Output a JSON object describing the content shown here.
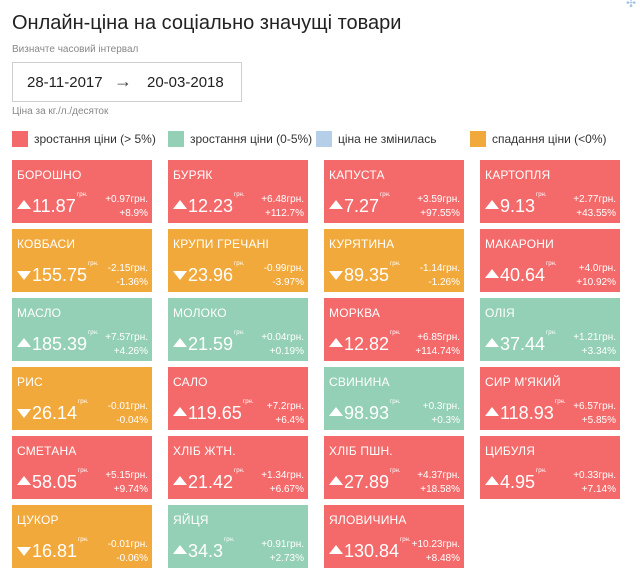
{
  "header": {
    "title": "Онлайн-ціна на соціально значущі товари",
    "date_label": "Визначте часовий інтервал",
    "date_from": "28-11-2017",
    "date_arrow": "→",
    "date_to": "20-03-2018",
    "unit_label": "Ціна за кг./л./десяток",
    "corner_icon": "✣"
  },
  "colors": {
    "red": "#f46a6a",
    "green": "#94d0b6",
    "blue": "#b6cfe8",
    "orange": "#f2a93b"
  },
  "legend": [
    {
      "label": "зростання ціни (> 5%)",
      "color": "#f46a6a"
    },
    {
      "label": "зростання ціни (0-5%)",
      "color": "#94d0b6"
    },
    {
      "label": "ціна не змінилась",
      "color": "#b6cfe8"
    },
    {
      "label": "спадання ціни (<0%)",
      "color": "#f2a93b"
    }
  ],
  "currency": "грн.",
  "products": [
    {
      "name": "БОРОШНО",
      "price": "11.87",
      "change": "+0.97грн.",
      "pct": "+8.9%",
      "dir": "up",
      "color": "red"
    },
    {
      "name": "БУРЯК",
      "price": "12.23",
      "change": "+6.48грн.",
      "pct": "+112.7%",
      "dir": "up",
      "color": "red"
    },
    {
      "name": "КАПУСТА",
      "price": "7.27",
      "change": "+3.59грн.",
      "pct": "+97.55%",
      "dir": "up",
      "color": "red"
    },
    {
      "name": "КАРТОПЛЯ",
      "price": "9.13",
      "change": "+2.77грн.",
      "pct": "+43.55%",
      "dir": "up",
      "color": "red"
    },
    {
      "name": "КОВБАСИ",
      "price": "155.75",
      "change": "-2.15грн.",
      "pct": "-1.36%",
      "dir": "down",
      "color": "orange"
    },
    {
      "name": "КРУПИ ГРЕЧАНІ",
      "price": "23.96",
      "change": "-0.99грн.",
      "pct": "-3.97%",
      "dir": "down",
      "color": "orange"
    },
    {
      "name": "КУРЯТИНА",
      "price": "89.35",
      "change": "-1.14грн.",
      "pct": "-1.26%",
      "dir": "down",
      "color": "orange"
    },
    {
      "name": "МАКАРОНИ",
      "price": "40.64",
      "change": "+4.0грн.",
      "pct": "+10.92%",
      "dir": "up",
      "color": "red"
    },
    {
      "name": "МАСЛО",
      "price": "185.39",
      "change": "+7.57грн.",
      "pct": "+4.26%",
      "dir": "up",
      "color": "green"
    },
    {
      "name": "МОЛОКО",
      "price": "21.59",
      "change": "+0.04грн.",
      "pct": "+0.19%",
      "dir": "up",
      "color": "green"
    },
    {
      "name": "МОРКВА",
      "price": "12.82",
      "change": "+6.85грн.",
      "pct": "+114.74%",
      "dir": "up",
      "color": "red"
    },
    {
      "name": "ОЛІЯ",
      "price": "37.44",
      "change": "+1.21грн.",
      "pct": "+3.34%",
      "dir": "up",
      "color": "green"
    },
    {
      "name": "РИС",
      "price": "26.14",
      "change": "-0.01грн.",
      "pct": "-0.04%",
      "dir": "down",
      "color": "orange"
    },
    {
      "name": "САЛО",
      "price": "119.65",
      "change": "+7.2грн.",
      "pct": "+6.4%",
      "dir": "up",
      "color": "red"
    },
    {
      "name": "СВИНИНА",
      "price": "98.93",
      "change": "+0.3грн.",
      "pct": "+0.3%",
      "dir": "up",
      "color": "green"
    },
    {
      "name": "СИР М'ЯКИЙ",
      "price": "118.93",
      "change": "+6.57грн.",
      "pct": "+5.85%",
      "dir": "up",
      "color": "red"
    },
    {
      "name": "СМЕТАНА",
      "price": "58.05",
      "change": "+5.15грн.",
      "pct": "+9.74%",
      "dir": "up",
      "color": "red"
    },
    {
      "name": "ХЛІБ ЖТН.",
      "price": "21.42",
      "change": "+1.34грн.",
      "pct": "+6.67%",
      "dir": "up",
      "color": "red"
    },
    {
      "name": "ХЛІБ ПШН.",
      "price": "27.89",
      "change": "+4.37грн.",
      "pct": "+18.58%",
      "dir": "up",
      "color": "red"
    },
    {
      "name": "ЦИБУЛЯ",
      "price": "4.95",
      "change": "+0.33грн.",
      "pct": "+7.14%",
      "dir": "up",
      "color": "red"
    },
    {
      "name": "ЦУКОР",
      "price": "16.81",
      "change": "-0.01грн.",
      "pct": "-0.06%",
      "dir": "down",
      "color": "orange"
    },
    {
      "name": "ЯЙЦЯ",
      "price": "34.3",
      "change": "+0.91грн.",
      "pct": "+2.73%",
      "dir": "up",
      "color": "green"
    },
    {
      "name": "ЯЛОВИЧИНА",
      "price": "130.84",
      "change": "+10.23грн.",
      "pct": "+8.48%",
      "dir": "up",
      "color": "red"
    }
  ]
}
